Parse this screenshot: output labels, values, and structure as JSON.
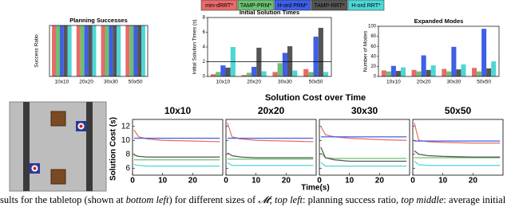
{
  "legend": [
    {
      "name": "mm-dRRT*",
      "color": "#e86a6a"
    },
    {
      "name": "TAMP-PRM*",
      "color": "#6cc070"
    },
    {
      "name": "H-ord PRM*",
      "color": "#3f5fe6"
    },
    {
      "name": "TAMP-RRT*",
      "color": "#555555"
    },
    {
      "name": "H-ord RRT*",
      "color": "#4fd6d6"
    }
  ],
  "chart_data": [
    {
      "type": "bar",
      "title": "Planning Successes",
      "ylabel": "Success Ratio",
      "categories": [
        "10x10",
        "20x20",
        "30x30",
        "50x50"
      ],
      "ylim": [
        0,
        1
      ],
      "series": [
        {
          "values": [
            1,
            1,
            1,
            1
          ]
        },
        {
          "values": [
            1,
            1,
            1,
            1
          ]
        },
        {
          "values": [
            1,
            1,
            1,
            1
          ]
        },
        {
          "values": [
            1,
            1,
            1,
            1
          ]
        },
        {
          "values": [
            1,
            1,
            1,
            1
          ]
        }
      ]
    },
    {
      "type": "bar",
      "title": "Initial Solution Times",
      "ylabel": "Initial Solution Times (s)",
      "categories": [
        "10x10",
        "20x20",
        "30x30",
        "50x50"
      ],
      "ylim": [
        0,
        8
      ],
      "yticks": [
        0,
        2,
        4,
        6,
        8
      ],
      "hline": 2,
      "series": [
        {
          "values": [
            0.3,
            0.2,
            0.6,
            1.0
          ]
        },
        {
          "values": [
            0.6,
            0.5,
            1.8,
            0.6
          ]
        },
        {
          "values": [
            1.5,
            1.3,
            3.2,
            5.4
          ]
        },
        {
          "values": [
            1.2,
            3.9,
            4.1,
            6.6
          ]
        },
        {
          "values": [
            4.0,
            0.7,
            0.8,
            0.6
          ]
        }
      ]
    },
    {
      "type": "bar",
      "title": "Expanded Modes",
      "ylabel": "Number of Modes",
      "categories": [
        "10x10",
        "20x20",
        "30x30",
        "50x50"
      ],
      "ylim": [
        0,
        100
      ],
      "yticks": [
        0,
        20,
        40,
        60,
        80,
        100
      ],
      "series": [
        {
          "values": [
            12,
            13,
            15,
            17
          ]
        },
        {
          "values": [
            10,
            10,
            10,
            10
          ]
        },
        {
          "values": [
            21,
            42,
            59,
            95
          ]
        },
        {
          "values": [
            11,
            13,
            14,
            16
          ]
        },
        {
          "values": [
            18,
            22,
            24,
            30
          ]
        }
      ]
    },
    {
      "type": "line",
      "title": "Solution Cost over Time",
      "ylabel": "Solution Cost (s)",
      "xlabel": "Time(s)",
      "xlim": [
        0,
        30
      ],
      "ylim": [
        5,
        13
      ],
      "xticks": [
        0,
        10,
        20
      ],
      "yticks": [
        6,
        8,
        10,
        12
      ],
      "panels": [
        {
          "title": "10x10",
          "x": [
            0.5,
            2,
            5,
            10,
            20,
            29
          ],
          "series": [
            {
              "values": [
                11.5,
                10.5,
                10.2,
                10.0,
                9.9,
                9.8
              ]
            },
            {
              "values": [
                7.2,
                7.2,
                7.2,
                7.2,
                7.2,
                7.2
              ]
            },
            {
              "values": [
                10.3,
                10.3,
                10.3,
                10.3,
                10.3,
                10.3
              ]
            },
            {
              "values": [
                7.9,
                7.7,
                7.6,
                7.6,
                7.6,
                7.6
              ]
            },
            {
              "values": [
                6.5,
                6.4,
                6.3,
                6.3,
                6.3,
                6.3
              ]
            }
          ]
        },
        {
          "title": "20x20",
          "x": [
            0.5,
            2,
            5,
            10,
            20,
            29
          ],
          "series": [
            {
              "values": [
                12.5,
                10.5,
                10.2,
                10.0,
                9.9,
                9.8
              ]
            },
            {
              "values": [
                7.3,
                7.3,
                7.3,
                7.3,
                7.3,
                7.3
              ]
            },
            {
              "values": [
                10.3,
                10.3,
                10.3,
                10.3,
                10.3,
                10.3
              ]
            },
            {
              "values": [
                8.2,
                7.8,
                7.6,
                7.5,
                7.5,
                7.5
              ]
            },
            {
              "values": [
                6.8,
                6.4,
                6.4,
                6.4,
                6.4,
                6.4
              ]
            }
          ]
        },
        {
          "title": "30x30",
          "x": [
            0.5,
            2,
            5,
            10,
            20,
            29
          ],
          "series": [
            {
              "values": [
                12.0,
                10.8,
                10.5,
                10.3,
                10.1,
                10.0
              ]
            },
            {
              "values": [
                8.2,
                7.5,
                7.4,
                7.4,
                7.4,
                7.4
              ]
            },
            {
              "values": [
                10.5,
                10.5,
                10.5,
                10.5,
                10.5,
                10.5
              ]
            },
            {
              "values": [
                9.0,
                7.5,
                7.2,
                7.0,
                7.0,
                7.0
              ]
            },
            {
              "values": [
                6.8,
                6.3,
                6.3,
                6.3,
                6.3,
                6.3
              ]
            }
          ]
        },
        {
          "title": "50x50",
          "x": [
            0.5,
            2,
            5,
            10,
            20,
            29
          ],
          "series": [
            {
              "values": [
                12.5,
                10.0,
                9.8,
                9.7,
                9.6,
                9.6
              ]
            },
            {
              "values": [
                7.5,
                7.5,
                7.5,
                7.5,
                7.5,
                7.5
              ]
            },
            {
              "values": [
                9.9,
                9.9,
                9.9,
                9.9,
                9.9,
                9.9
              ]
            },
            {
              "values": [
                8.5,
                8.0,
                7.8,
                7.7,
                7.6,
                7.6
              ]
            },
            {
              "values": [
                7.0,
                6.5,
                6.4,
                6.4,
                6.4,
                6.4
              ]
            }
          ]
        }
      ]
    }
  ],
  "caption": [
    "sults for the tabletop (shown at ",
    "bottom left",
    ") for different sizes of ",
    "𝓜",
    "; ",
    "top left",
    ": planning success ratio, ",
    "top middle",
    ": average initial"
  ]
}
